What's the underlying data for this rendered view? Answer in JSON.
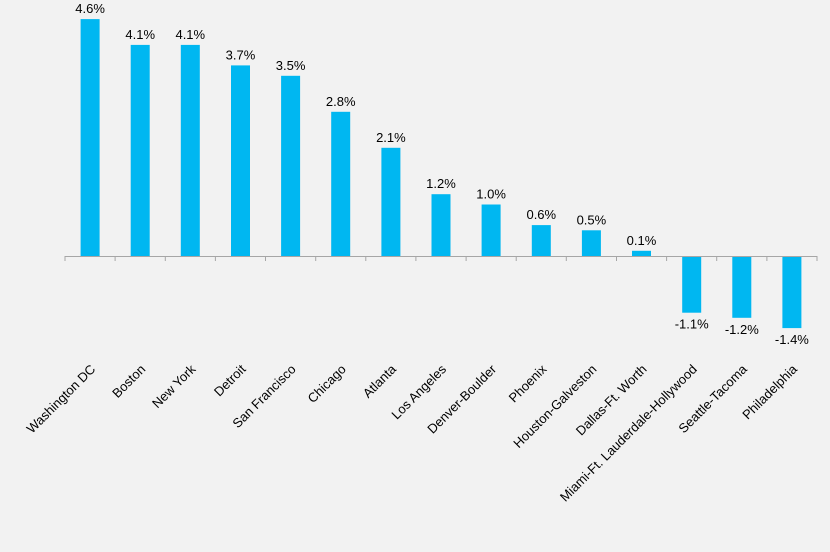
{
  "chart_data": {
    "type": "bar",
    "title": "",
    "xlabel": "",
    "ylabel": "",
    "categories": [
      "Washington DC",
      "Boston",
      "New York",
      "Detroit",
      "San Francisco",
      "Chicago",
      "Atlanta",
      "Los Angeles",
      "Denver-Boulder",
      "Phoenix",
      "Houston-Galveston",
      "Dallas-Ft. Worth",
      "Miami-Ft. Lauderdale-Hollywood",
      "Seattle-Tacoma",
      "Philadelphia"
    ],
    "values": [
      4.6,
      4.1,
      4.1,
      3.7,
      3.5,
      2.8,
      2.1,
      1.2,
      1.0,
      0.6,
      0.5,
      0.1,
      -1.1,
      -1.2,
      -1.4
    ],
    "value_labels": [
      "4.6%",
      "4.1%",
      "4.1%",
      "3.7%",
      "3.5%",
      "2.8%",
      "2.1%",
      "1.2%",
      "1.0%",
      "0.6%",
      "0.5%",
      "0.1%",
      "-1.1%",
      "-1.2%",
      "-1.4%"
    ],
    "ylim": [
      -1.4,
      4.6
    ],
    "grid": false,
    "legend": "none",
    "bar_color": "#00b7f1",
    "axis_color": "#a6a6a6",
    "background_color": "#f2f2f2"
  }
}
